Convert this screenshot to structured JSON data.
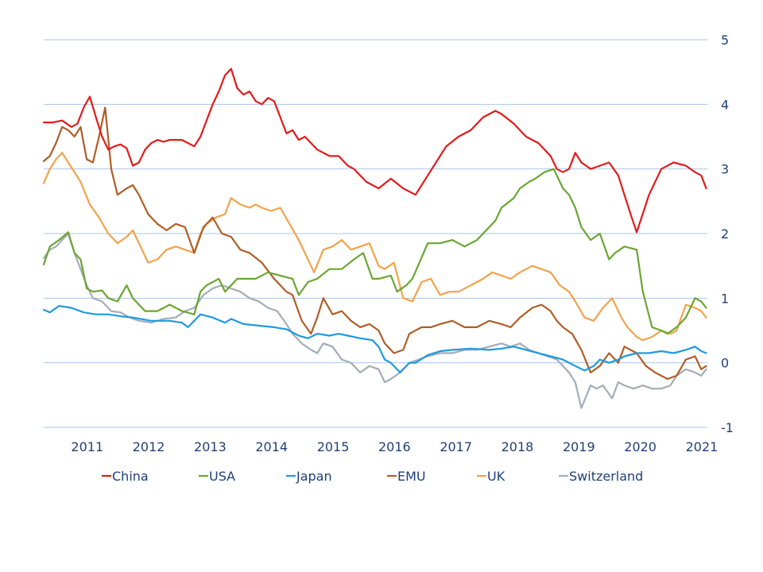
{
  "chart_data": {
    "type": "line",
    "y_axis_side": "right",
    "ylim": [
      -1,
      5
    ],
    "yticks": [
      "5",
      "4",
      "3",
      "2",
      "1",
      "0",
      "-1"
    ],
    "xlim": [
      2010.55,
      2021.35
    ],
    "xticks": [
      {
        "label": "2011",
        "pos": 2011.0
      },
      {
        "label": "2012",
        "pos": 2012.0
      },
      {
        "label": "2013",
        "pos": 2013.0
      },
      {
        "label": "2014",
        "pos": 2014.0
      },
      {
        "label": "2015",
        "pos": 2015.0
      },
      {
        "label": "2016",
        "pos": 2016.0
      },
      {
        "label": "2017",
        "pos": 2017.0
      },
      {
        "label": "2018",
        "pos": 2018.0
      },
      {
        "label": "2019",
        "pos": 2019.0
      },
      {
        "label": "2020",
        "pos": 2020.0
      },
      {
        "label": "2021",
        "pos": 2021.0
      }
    ],
    "grid": true,
    "legend_position": "bottom",
    "series": [
      {
        "name": "China",
        "color": "#e31b1b",
        "x": [
          2010.55,
          2010.7,
          2010.85,
          2011.0,
          2011.1,
          2011.2,
          2011.3,
          2011.4,
          2011.5,
          2011.6,
          2011.7,
          2011.8,
          2011.9,
          2012.0,
          2012.1,
          2012.2,
          2012.3,
          2012.4,
          2012.5,
          2012.6,
          2012.8,
          2013.0,
          2013.1,
          2013.2,
          2013.3,
          2013.4,
          2013.5,
          2013.6,
          2013.7,
          2013.8,
          2013.9,
          2014.0,
          2014.1,
          2014.2,
          2014.3,
          2014.4,
          2014.5,
          2014.6,
          2014.7,
          2014.8,
          2015.0,
          2015.2,
          2015.35,
          2015.5,
          2015.6,
          2015.8,
          2016.0,
          2016.2,
          2016.4,
          2016.6,
          2016.8,
          2017.0,
          2017.1,
          2017.3,
          2017.5,
          2017.7,
          2017.9,
          2018.0,
          2018.2,
          2018.4,
          2018.6,
          2018.7,
          2018.8,
          2018.9,
          2019.0,
          2019.1,
          2019.2,
          2019.3,
          2019.45,
          2019.6,
          2019.75,
          2019.9,
          2020.0,
          2020.1,
          2020.2,
          2020.4,
          2020.6,
          2020.8,
          2021.0,
          2021.15,
          2021.25,
          2021.33
        ],
        "y": [
          3.72,
          3.72,
          3.75,
          3.65,
          3.7,
          3.95,
          4.12,
          3.8,
          3.5,
          3.3,
          3.35,
          3.38,
          3.32,
          3.05,
          3.1,
          3.3,
          3.4,
          3.45,
          3.42,
          3.45,
          3.45,
          3.35,
          3.5,
          3.75,
          4.0,
          4.2,
          4.45,
          4.55,
          4.25,
          4.15,
          4.2,
          4.05,
          4.0,
          4.1,
          4.05,
          3.8,
          3.55,
          3.6,
          3.45,
          3.5,
          3.3,
          3.2,
          3.2,
          3.05,
          3.0,
          2.8,
          2.7,
          2.85,
          2.7,
          2.6,
          2.9,
          3.2,
          3.35,
          3.5,
          3.6,
          3.8,
          3.9,
          3.85,
          3.7,
          3.5,
          3.4,
          3.3,
          3.2,
          3.0,
          2.95,
          3.0,
          3.25,
          3.1,
          3.0,
          3.05,
          3.1,
          2.9,
          2.6,
          2.3,
          2.02,
          2.6,
          3.0,
          3.1,
          3.05,
          2.95,
          2.9,
          2.7
        ]
      },
      {
        "name": "USA",
        "color": "#6aa632",
        "x": [
          2010.55,
          2010.65,
          2010.8,
          2010.95,
          2011.05,
          2011.15,
          2011.25,
          2011.35,
          2011.5,
          2011.6,
          2011.75,
          2011.9,
          2012.0,
          2012.2,
          2012.4,
          2012.6,
          2012.8,
          2013.0,
          2013.1,
          2013.2,
          2013.4,
          2013.5,
          2013.7,
          2013.9,
          2014.0,
          2014.2,
          2014.4,
          2014.6,
          2014.7,
          2014.85,
          2015.0,
          2015.2,
          2015.4,
          2015.6,
          2015.75,
          2015.9,
          2016.0,
          2016.2,
          2016.3,
          2016.45,
          2016.55,
          2016.8,
          2017.0,
          2017.2,
          2017.4,
          2017.6,
          2017.75,
          2017.9,
          2018.0,
          2018.2,
          2018.3,
          2018.45,
          2018.55,
          2018.7,
          2018.85,
          2019.0,
          2019.1,
          2019.2,
          2019.3,
          2019.45,
          2019.6,
          2019.75,
          2019.85,
          2020.0,
          2020.2,
          2020.3,
          2020.45,
          2020.6,
          2020.7,
          2020.85,
          2021.0,
          2021.15,
          2021.25,
          2021.33
        ],
        "y": [
          1.52,
          1.8,
          1.9,
          2.02,
          1.7,
          1.6,
          1.15,
          1.1,
          1.12,
          1.0,
          0.95,
          1.2,
          1.0,
          0.8,
          0.8,
          0.9,
          0.8,
          0.75,
          1.1,
          1.2,
          1.3,
          1.1,
          1.3,
          1.3,
          1.3,
          1.4,
          1.35,
          1.3,
          1.05,
          1.25,
          1.3,
          1.45,
          1.45,
          1.6,
          1.7,
          1.3,
          1.3,
          1.35,
          1.1,
          1.2,
          1.3,
          1.85,
          1.85,
          1.9,
          1.8,
          1.9,
          2.05,
          2.2,
          2.4,
          2.55,
          2.7,
          2.8,
          2.85,
          2.95,
          3.0,
          2.7,
          2.6,
          2.4,
          2.1,
          1.9,
          2.0,
          1.6,
          1.7,
          1.8,
          1.75,
          1.1,
          0.55,
          0.5,
          0.45,
          0.55,
          0.7,
          1.0,
          0.95,
          0.85
        ]
      },
      {
        "name": "Japan",
        "color": "#1f9ae0",
        "x": [
          2010.55,
          2010.65,
          2010.8,
          2011.0,
          2011.2,
          2011.4,
          2011.6,
          2011.8,
          2012.0,
          2012.3,
          2012.6,
          2012.8,
          2012.9,
          2013.0,
          2013.1,
          2013.3,
          2013.5,
          2013.6,
          2013.8,
          2014.0,
          2014.3,
          2014.5,
          2014.7,
          2014.85,
          2015.0,
          2015.2,
          2015.35,
          2015.5,
          2015.7,
          2015.9,
          2016.0,
          2016.1,
          2016.2,
          2016.35,
          2016.5,
          2016.6,
          2016.8,
          2017.0,
          2017.2,
          2017.5,
          2017.8,
          2018.0,
          2018.2,
          2018.4,
          2018.6,
          2018.8,
          2019.0,
          2019.2,
          2019.35,
          2019.5,
          2019.6,
          2019.75,
          2019.9,
          2020.0,
          2020.2,
          2020.4,
          2020.6,
          2020.8,
          2021.0,
          2021.15,
          2021.25,
          2021.33
        ],
        "y": [
          0.82,
          0.78,
          0.88,
          0.85,
          0.78,
          0.75,
          0.75,
          0.72,
          0.7,
          0.65,
          0.65,
          0.62,
          0.55,
          0.65,
          0.75,
          0.7,
          0.62,
          0.68,
          0.6,
          0.58,
          0.55,
          0.52,
          0.42,
          0.38,
          0.45,
          0.42,
          0.45,
          0.42,
          0.38,
          0.35,
          0.25,
          0.05,
          0.0,
          -0.15,
          0.0,
          0.0,
          0.12,
          0.18,
          0.2,
          0.22,
          0.2,
          0.22,
          0.25,
          0.2,
          0.15,
          0.1,
          0.05,
          -0.05,
          -0.12,
          -0.05,
          0.05,
          0.0,
          0.05,
          0.1,
          0.15,
          0.15,
          0.18,
          0.15,
          0.2,
          0.25,
          0.18,
          0.15
        ]
      },
      {
        "name": "EMU",
        "color": "#b05e26",
        "x": [
          2010.55,
          2010.65,
          2010.75,
          2010.85,
          2010.95,
          2011.05,
          2011.15,
          2011.25,
          2011.35,
          2011.45,
          2011.55,
          2011.65,
          2011.75,
          2011.9,
          2012.0,
          2012.1,
          2012.25,
          2012.4,
          2012.55,
          2012.7,
          2012.85,
          2013.0,
          2013.15,
          2013.3,
          2013.45,
          2013.6,
          2013.75,
          2013.9,
          2014.1,
          2014.3,
          2014.5,
          2014.6,
          2014.75,
          2014.9,
          2015.0,
          2015.1,
          2015.25,
          2015.4,
          2015.55,
          2015.7,
          2015.85,
          2016.0,
          2016.1,
          2016.25,
          2016.4,
          2016.5,
          2016.7,
          2016.85,
          2017.0,
          2017.2,
          2017.4,
          2017.6,
          2017.8,
          2018.0,
          2018.15,
          2018.3,
          2018.5,
          2018.65,
          2018.8,
          2018.9,
          2019.0,
          2019.15,
          2019.3,
          2019.45,
          2019.6,
          2019.75,
          2019.9,
          2020.0,
          2020.2,
          2020.35,
          2020.5,
          2020.7,
          2020.85,
          2021.0,
          2021.15,
          2021.25,
          2021.33
        ],
        "y": [
          3.12,
          3.2,
          3.4,
          3.65,
          3.6,
          3.5,
          3.65,
          3.15,
          3.1,
          3.5,
          3.95,
          3.0,
          2.6,
          2.7,
          2.75,
          2.6,
          2.3,
          2.15,
          2.05,
          2.15,
          2.1,
          1.7,
          2.1,
          2.25,
          2.0,
          1.95,
          1.75,
          1.7,
          1.55,
          1.3,
          1.1,
          1.05,
          0.65,
          0.45,
          0.7,
          1.0,
          0.75,
          0.8,
          0.65,
          0.55,
          0.6,
          0.5,
          0.3,
          0.15,
          0.2,
          0.45,
          0.55,
          0.55,
          0.6,
          0.65,
          0.55,
          0.55,
          0.65,
          0.6,
          0.55,
          0.7,
          0.85,
          0.9,
          0.8,
          0.65,
          0.55,
          0.45,
          0.2,
          -0.15,
          -0.05,
          0.15,
          0.0,
          0.25,
          0.15,
          -0.05,
          -0.15,
          -0.25,
          -0.2,
          0.05,
          0.1,
          -0.1,
          -0.05
        ]
      },
      {
        "name": "UK",
        "color": "#f4a24a",
        "x": [
          2010.55,
          2010.65,
          2010.75,
          2010.85,
          2010.95,
          2011.05,
          2011.15,
          2011.3,
          2011.45,
          2011.6,
          2011.75,
          2011.9,
          2012.0,
          2012.1,
          2012.25,
          2012.4,
          2012.55,
          2012.7,
          2012.85,
          2013.0,
          2013.1,
          2013.2,
          2013.35,
          2013.5,
          2013.6,
          2013.75,
          2013.9,
          2014.0,
          2014.1,
          2014.25,
          2014.4,
          2014.55,
          2014.7,
          2014.8,
          2014.95,
          2015.1,
          2015.25,
          2015.4,
          2015.55,
          2015.7,
          2015.85,
          2016.0,
          2016.1,
          2016.25,
          2016.4,
          2016.55,
          2016.7,
          2016.85,
          2017.0,
          2017.15,
          2017.3,
          2017.5,
          2017.7,
          2017.85,
          2018.0,
          2018.15,
          2018.3,
          2018.5,
          2018.65,
          2018.8,
          2018.95,
          2019.1,
          2019.2,
          2019.35,
          2019.5,
          2019.65,
          2019.8,
          2019.95,
          2020.05,
          2020.2,
          2020.3,
          2020.45,
          2020.6,
          2020.75,
          2020.85,
          2021.0,
          2021.15,
          2021.25,
          2021.33
        ],
        "y": [
          2.78,
          3.0,
          3.15,
          3.25,
          3.1,
          2.95,
          2.8,
          2.45,
          2.25,
          2.0,
          1.85,
          1.95,
          2.05,
          1.85,
          1.55,
          1.6,
          1.75,
          1.8,
          1.75,
          1.7,
          2.0,
          2.15,
          2.25,
          2.3,
          2.55,
          2.45,
          2.4,
          2.45,
          2.4,
          2.35,
          2.4,
          2.15,
          1.9,
          1.7,
          1.4,
          1.75,
          1.8,
          1.9,
          1.75,
          1.8,
          1.85,
          1.5,
          1.45,
          1.55,
          1.0,
          0.95,
          1.25,
          1.3,
          1.05,
          1.1,
          1.1,
          1.2,
          1.3,
          1.4,
          1.35,
          1.3,
          1.4,
          1.5,
          1.45,
          1.4,
          1.2,
          1.1,
          0.95,
          0.7,
          0.65,
          0.85,
          1.0,
          0.7,
          0.55,
          0.4,
          0.35,
          0.4,
          0.5,
          0.45,
          0.5,
          0.9,
          0.85,
          0.8,
          0.7
        ]
      },
      {
        "name": "Switzerland",
        "color": "#a3adb8",
        "x": [
          2010.55,
          2010.65,
          2010.75,
          2010.85,
          2010.95,
          2011.05,
          2011.15,
          2011.25,
          2011.35,
          2011.5,
          2011.65,
          2011.8,
          2011.95,
          2012.1,
          2012.3,
          2012.5,
          2012.7,
          2012.85,
          2013.0,
          2013.15,
          2013.3,
          2013.45,
          2013.6,
          2013.75,
          2013.9,
          2014.05,
          2014.2,
          2014.35,
          2014.5,
          2014.6,
          2014.75,
          2014.9,
          2015.0,
          2015.1,
          2015.25,
          2015.4,
          2015.55,
          2015.7,
          2015.85,
          2016.0,
          2016.1,
          2016.2,
          2016.35,
          2016.5,
          2016.65,
          2016.8,
          2017.0,
          2017.2,
          2017.4,
          2017.6,
          2017.8,
          2018.0,
          2018.15,
          2018.3,
          2018.45,
          2018.6,
          2018.75,
          2018.9,
          2019.0,
          2019.1,
          2019.2,
          2019.3,
          2019.45,
          2019.55,
          2019.65,
          2019.8,
          2019.9,
          2020.0,
          2020.15,
          2020.3,
          2020.45,
          2020.6,
          2020.75,
          2020.85,
          2021.0,
          2021.15,
          2021.25,
          2021.33
        ],
        "y": [
          1.62,
          1.75,
          1.8,
          1.9,
          2.0,
          1.7,
          1.45,
          1.2,
          1.0,
          0.95,
          0.8,
          0.78,
          0.7,
          0.65,
          0.62,
          0.68,
          0.7,
          0.8,
          0.85,
          1.05,
          1.15,
          1.2,
          1.15,
          1.1,
          1.0,
          0.95,
          0.85,
          0.8,
          0.6,
          0.45,
          0.3,
          0.2,
          0.15,
          0.3,
          0.25,
          0.05,
          0.0,
          -0.15,
          -0.05,
          -0.1,
          -0.3,
          -0.25,
          -0.15,
          0.0,
          0.05,
          0.1,
          0.15,
          0.15,
          0.2,
          0.2,
          0.25,
          0.3,
          0.25,
          0.3,
          0.2,
          0.15,
          0.1,
          0.05,
          -0.05,
          -0.15,
          -0.3,
          -0.7,
          -0.35,
          -0.4,
          -0.35,
          -0.55,
          -0.3,
          -0.35,
          -0.4,
          -0.35,
          -0.4,
          -0.4,
          -0.35,
          -0.2,
          -0.1,
          -0.15,
          -0.2,
          -0.1
        ]
      }
    ]
  }
}
